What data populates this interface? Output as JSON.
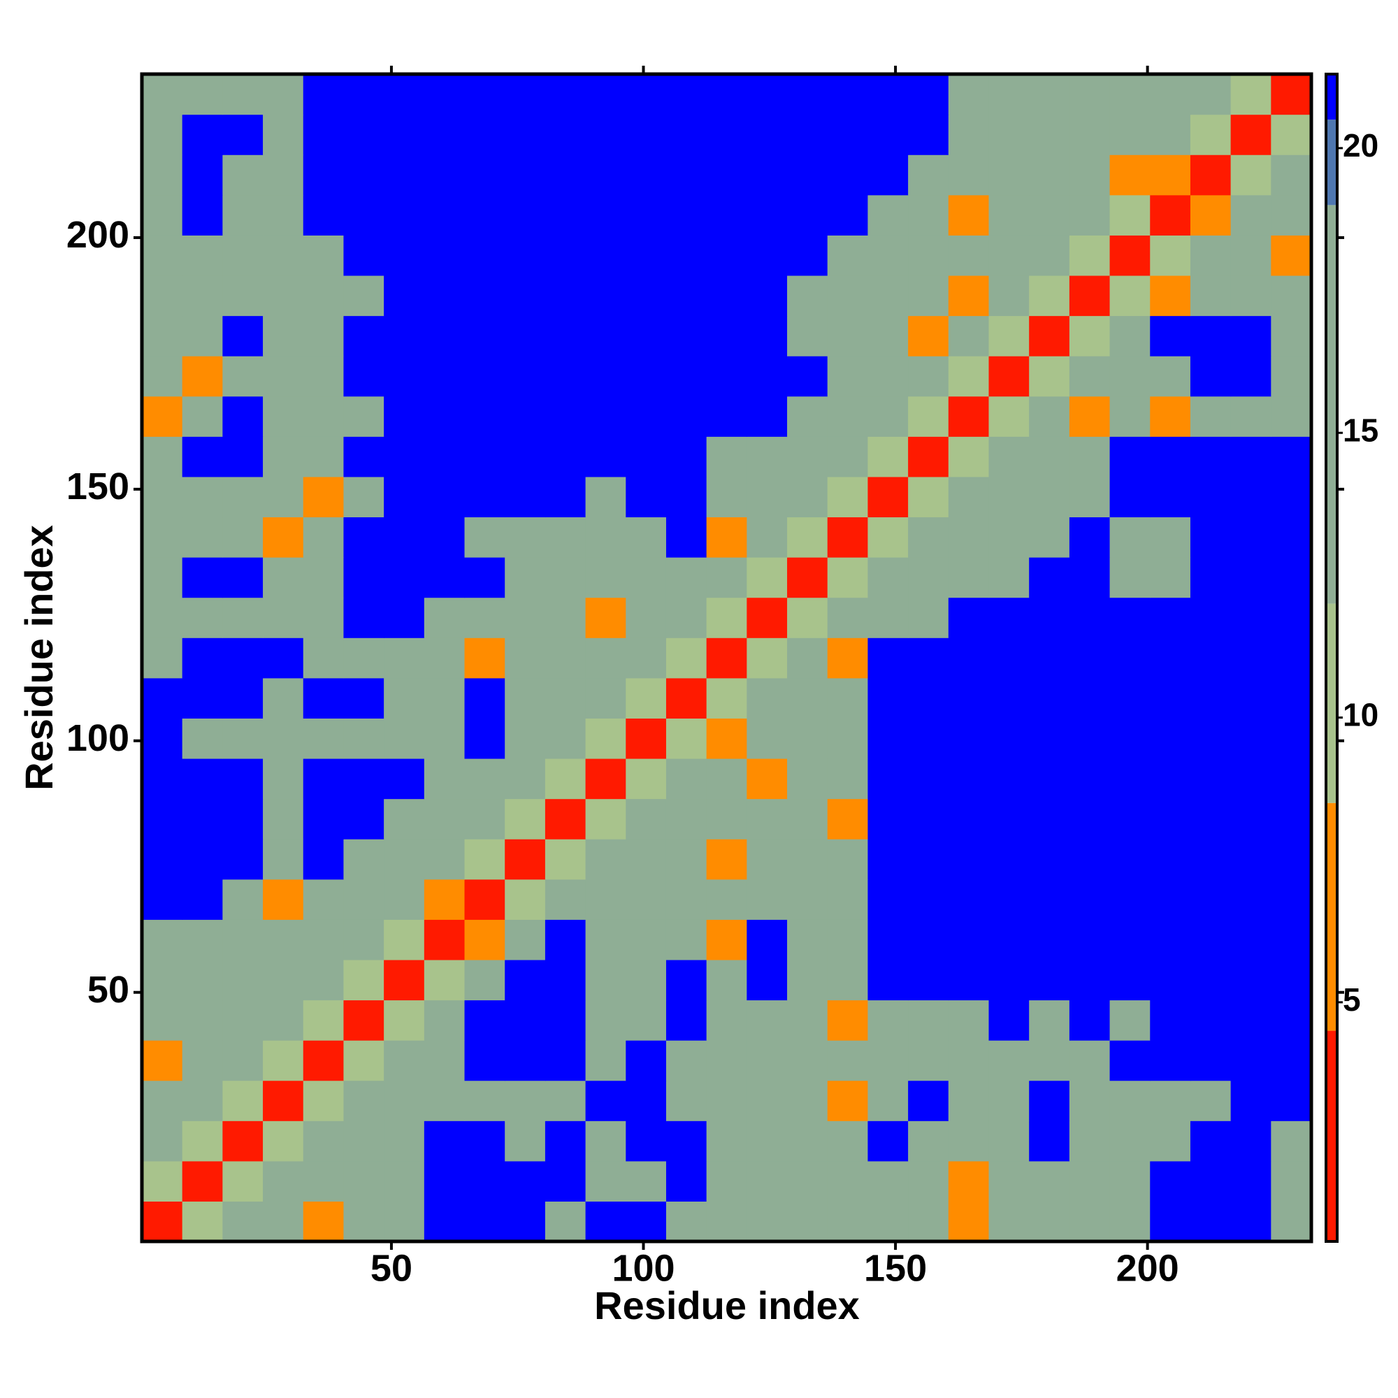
{
  "chart_data": {
    "type": "heatmap",
    "x_label": "Residue index",
    "y_label": "Residue index",
    "xlim": [
      0.5,
      232.5
    ],
    "ylim": [
      0.5,
      232.5
    ],
    "xticks": [
      50,
      100,
      150,
      200
    ],
    "yticks": [
      50,
      100,
      150,
      200
    ],
    "zlim": [
      0.8,
      21.3
    ],
    "zticks": [
      5,
      10,
      15,
      20
    ],
    "colorscale": [
      {
        "value": 4.5,
        "color": "#ff1a00"
      },
      {
        "value": 8.5,
        "color": "#ff8c00"
      },
      {
        "value": 12,
        "color": "#a8c38c"
      },
      {
        "value": 19,
        "color": "#8fae95"
      },
      {
        "value": 20.5,
        "color": "#4f77b0"
      },
      {
        "value": 21.3,
        "color": "#0000ff"
      }
    ],
    "x": [
      4.5,
      12.5,
      20.5,
      28.5,
      36.5,
      44.5,
      52.5,
      60.5,
      68.5,
      76.5,
      84.5,
      92.5,
      100.5,
      108.5,
      116.5,
      124.5,
      132.5,
      140.5,
      148.5,
      156.5,
      164.5,
      172.5,
      180.5,
      188.5,
      196.5,
      204.5,
      212.5,
      220.5,
      228.5
    ],
    "y": [
      4.5,
      12.5,
      20.5,
      28.5,
      36.5,
      44.5,
      52.5,
      60.5,
      68.5,
      76.5,
      84.5,
      92.5,
      100.5,
      108.5,
      116.5,
      124.5,
      132.5,
      140.5,
      148.5,
      156.5,
      164.5,
      172.5,
      180.5,
      188.5,
      196.5,
      204.5,
      212.5,
      220.5,
      228.5
    ],
    "z": [
      [
        3,
        10,
        14,
        14,
        6,
        14,
        14,
        21,
        21,
        21,
        14,
        21,
        21,
        14,
        14,
        14,
        14,
        14,
        14,
        14,
        6,
        14,
        14,
        14,
        14,
        21,
        21,
        21,
        14
      ],
      [
        10,
        3,
        10,
        14,
        14,
        14,
        14,
        21,
        21,
        21,
        21,
        14,
        14,
        21,
        14,
        14,
        14,
        14,
        14,
        14,
        6,
        14,
        14,
        14,
        14,
        21,
        21,
        21,
        14
      ],
      [
        14,
        10,
        3,
        10,
        14,
        14,
        14,
        21,
        21,
        14,
        21,
        14,
        21,
        21,
        14,
        14,
        14,
        14,
        21,
        14,
        14,
        14,
        21,
        14,
        14,
        14,
        21,
        21,
        14
      ],
      [
        14,
        14,
        10,
        3,
        10,
        14,
        14,
        14,
        14,
        14,
        14,
        21,
        21,
        14,
        14,
        14,
        14,
        6,
        14,
        21,
        14,
        14,
        21,
        14,
        14,
        14,
        14,
        21,
        21
      ],
      [
        6,
        14,
        14,
        10,
        3,
        10,
        14,
        14,
        21,
        21,
        21,
        14,
        21,
        14,
        14,
        14,
        14,
        14,
        14,
        14,
        14,
        14,
        14,
        14,
        21,
        21,
        21,
        21,
        21
      ],
      [
        14,
        14,
        14,
        14,
        10,
        3,
        10,
        14,
        21,
        21,
        21,
        14,
        14,
        21,
        14,
        14,
        14,
        6,
        14,
        14,
        14,
        21,
        14,
        21,
        14,
        21,
        21,
        21,
        21
      ],
      [
        14,
        14,
        14,
        14,
        14,
        10,
        3,
        10,
        14,
        21,
        21,
        14,
        14,
        21,
        14,
        21,
        14,
        14,
        21,
        21,
        21,
        21,
        21,
        21,
        21,
        21,
        21,
        21,
        21
      ],
      [
        14,
        14,
        14,
        14,
        14,
        14,
        10,
        3,
        6,
        14,
        21,
        14,
        14,
        14,
        6,
        21,
        14,
        14,
        21,
        21,
        21,
        21,
        21,
        21,
        21,
        21,
        21,
        21,
        21
      ],
      [
        21,
        21,
        14,
        6,
        14,
        14,
        14,
        6,
        3,
        10,
        14,
        14,
        14,
        14,
        14,
        14,
        14,
        14,
        21,
        21,
        21,
        21,
        21,
        21,
        21,
        21,
        21,
        21,
        21
      ],
      [
        21,
        21,
        21,
        14,
        21,
        14,
        14,
        14,
        10,
        3,
        10,
        14,
        14,
        14,
        6,
        14,
        14,
        14,
        21,
        21,
        21,
        21,
        21,
        21,
        21,
        21,
        21,
        21,
        21
      ],
      [
        21,
        21,
        21,
        14,
        21,
        21,
        14,
        14,
        14,
        10,
        3,
        10,
        14,
        14,
        14,
        14,
        14,
        6,
        21,
        21,
        21,
        21,
        21,
        21,
        21,
        21,
        21,
        21,
        21
      ],
      [
        21,
        21,
        21,
        14,
        21,
        21,
        21,
        14,
        14,
        14,
        10,
        3,
        10,
        14,
        14,
        6,
        14,
        14,
        21,
        21,
        21,
        21,
        21,
        21,
        21,
        21,
        21,
        21,
        21
      ],
      [
        21,
        14,
        14,
        14,
        14,
        14,
        14,
        14,
        21,
        14,
        14,
        10,
        3,
        10,
        6,
        14,
        14,
        14,
        21,
        21,
        21,
        21,
        21,
        21,
        21,
        21,
        21,
        21,
        21
      ],
      [
        21,
        21,
        21,
        14,
        21,
        21,
        14,
        14,
        21,
        14,
        14,
        14,
        10,
        3,
        10,
        14,
        14,
        14,
        21,
        21,
        21,
        21,
        21,
        21,
        21,
        21,
        21,
        21,
        21
      ],
      [
        14,
        21,
        21,
        21,
        14,
        14,
        14,
        14,
        6,
        14,
        14,
        14,
        14,
        10,
        3,
        10,
        14,
        6,
        21,
        21,
        21,
        21,
        21,
        21,
        21,
        21,
        21,
        21,
        21
      ],
      [
        14,
        14,
        14,
        14,
        14,
        21,
        21,
        14,
        14,
        14,
        14,
        6,
        14,
        14,
        10,
        3,
        10,
        14,
        14,
        14,
        21,
        21,
        21,
        21,
        21,
        21,
        21,
        21,
        21
      ],
      [
        14,
        21,
        21,
        14,
        14,
        21,
        21,
        21,
        21,
        14,
        14,
        14,
        14,
        14,
        14,
        10,
        3,
        10,
        14,
        14,
        14,
        14,
        21,
        21,
        14,
        14,
        21,
        21,
        21
      ],
      [
        14,
        14,
        14,
        6,
        14,
        21,
        21,
        21,
        14,
        14,
        14,
        14,
        14,
        21,
        6,
        14,
        10,
        3,
        10,
        14,
        14,
        14,
        14,
        21,
        14,
        14,
        21,
        21,
        21
      ],
      [
        14,
        14,
        14,
        14,
        6,
        14,
        21,
        21,
        21,
        21,
        21,
        14,
        21,
        21,
        14,
        14,
        14,
        10,
        3,
        10,
        14,
        14,
        14,
        14,
        21,
        21,
        21,
        21,
        21
      ],
      [
        14,
        21,
        21,
        14,
        14,
        21,
        21,
        21,
        21,
        21,
        21,
        21,
        21,
        21,
        14,
        14,
        14,
        14,
        10,
        3,
        10,
        14,
        14,
        14,
        21,
        21,
        21,
        21,
        21
      ],
      [
        6,
        14,
        21,
        14,
        14,
        14,
        21,
        21,
        21,
        21,
        21,
        21,
        21,
        21,
        21,
        21,
        14,
        14,
        14,
        10,
        3,
        10,
        14,
        6,
        14,
        6,
        14,
        14,
        14
      ],
      [
        14,
        6,
        14,
        14,
        14,
        21,
        21,
        21,
        21,
        21,
        21,
        21,
        21,
        21,
        21,
        21,
        21,
        14,
        14,
        14,
        10,
        3,
        10,
        14,
        14,
        14,
        21,
        21,
        14
      ],
      [
        14,
        14,
        21,
        14,
        14,
        21,
        21,
        21,
        21,
        21,
        21,
        21,
        21,
        21,
        21,
        21,
        14,
        14,
        14,
        6,
        14,
        10,
        3,
        10,
        14,
        21,
        21,
        21,
        14
      ],
      [
        14,
        14,
        14,
        14,
        14,
        14,
        21,
        21,
        21,
        21,
        21,
        21,
        21,
        21,
        21,
        21,
        14,
        14,
        14,
        14,
        6,
        14,
        10,
        3,
        10,
        6,
        14,
        14,
        14
      ],
      [
        14,
        14,
        14,
        14,
        14,
        21,
        21,
        21,
        21,
        21,
        21,
        21,
        21,
        21,
        21,
        21,
        21,
        14,
        14,
        14,
        14,
        14,
        14,
        10,
        3,
        10,
        14,
        14,
        6
      ],
      [
        14,
        21,
        14,
        14,
        21,
        21,
        21,
        21,
        21,
        21,
        21,
        21,
        21,
        21,
        21,
        21,
        21,
        21,
        14,
        14,
        6,
        14,
        14,
        14,
        10,
        3,
        6,
        14,
        14
      ],
      [
        14,
        21,
        14,
        14,
        21,
        21,
        21,
        21,
        21,
        21,
        21,
        21,
        21,
        21,
        21,
        21,
        21,
        21,
        21,
        14,
        14,
        14,
        14,
        14,
        6,
        6,
        3,
        10,
        14
      ],
      [
        14,
        21,
        21,
        14,
        21,
        21,
        21,
        21,
        21,
        21,
        21,
        21,
        21,
        21,
        21,
        21,
        21,
        21,
        21,
        21,
        14,
        14,
        14,
        14,
        14,
        14,
        10,
        3,
        10
      ],
      [
        14,
        14,
        14,
        14,
        21,
        21,
        21,
        21,
        21,
        21,
        21,
        21,
        21,
        21,
        21,
        21,
        21,
        21,
        21,
        21,
        14,
        14,
        14,
        14,
        14,
        14,
        14,
        10,
        3
      ]
    ]
  }
}
